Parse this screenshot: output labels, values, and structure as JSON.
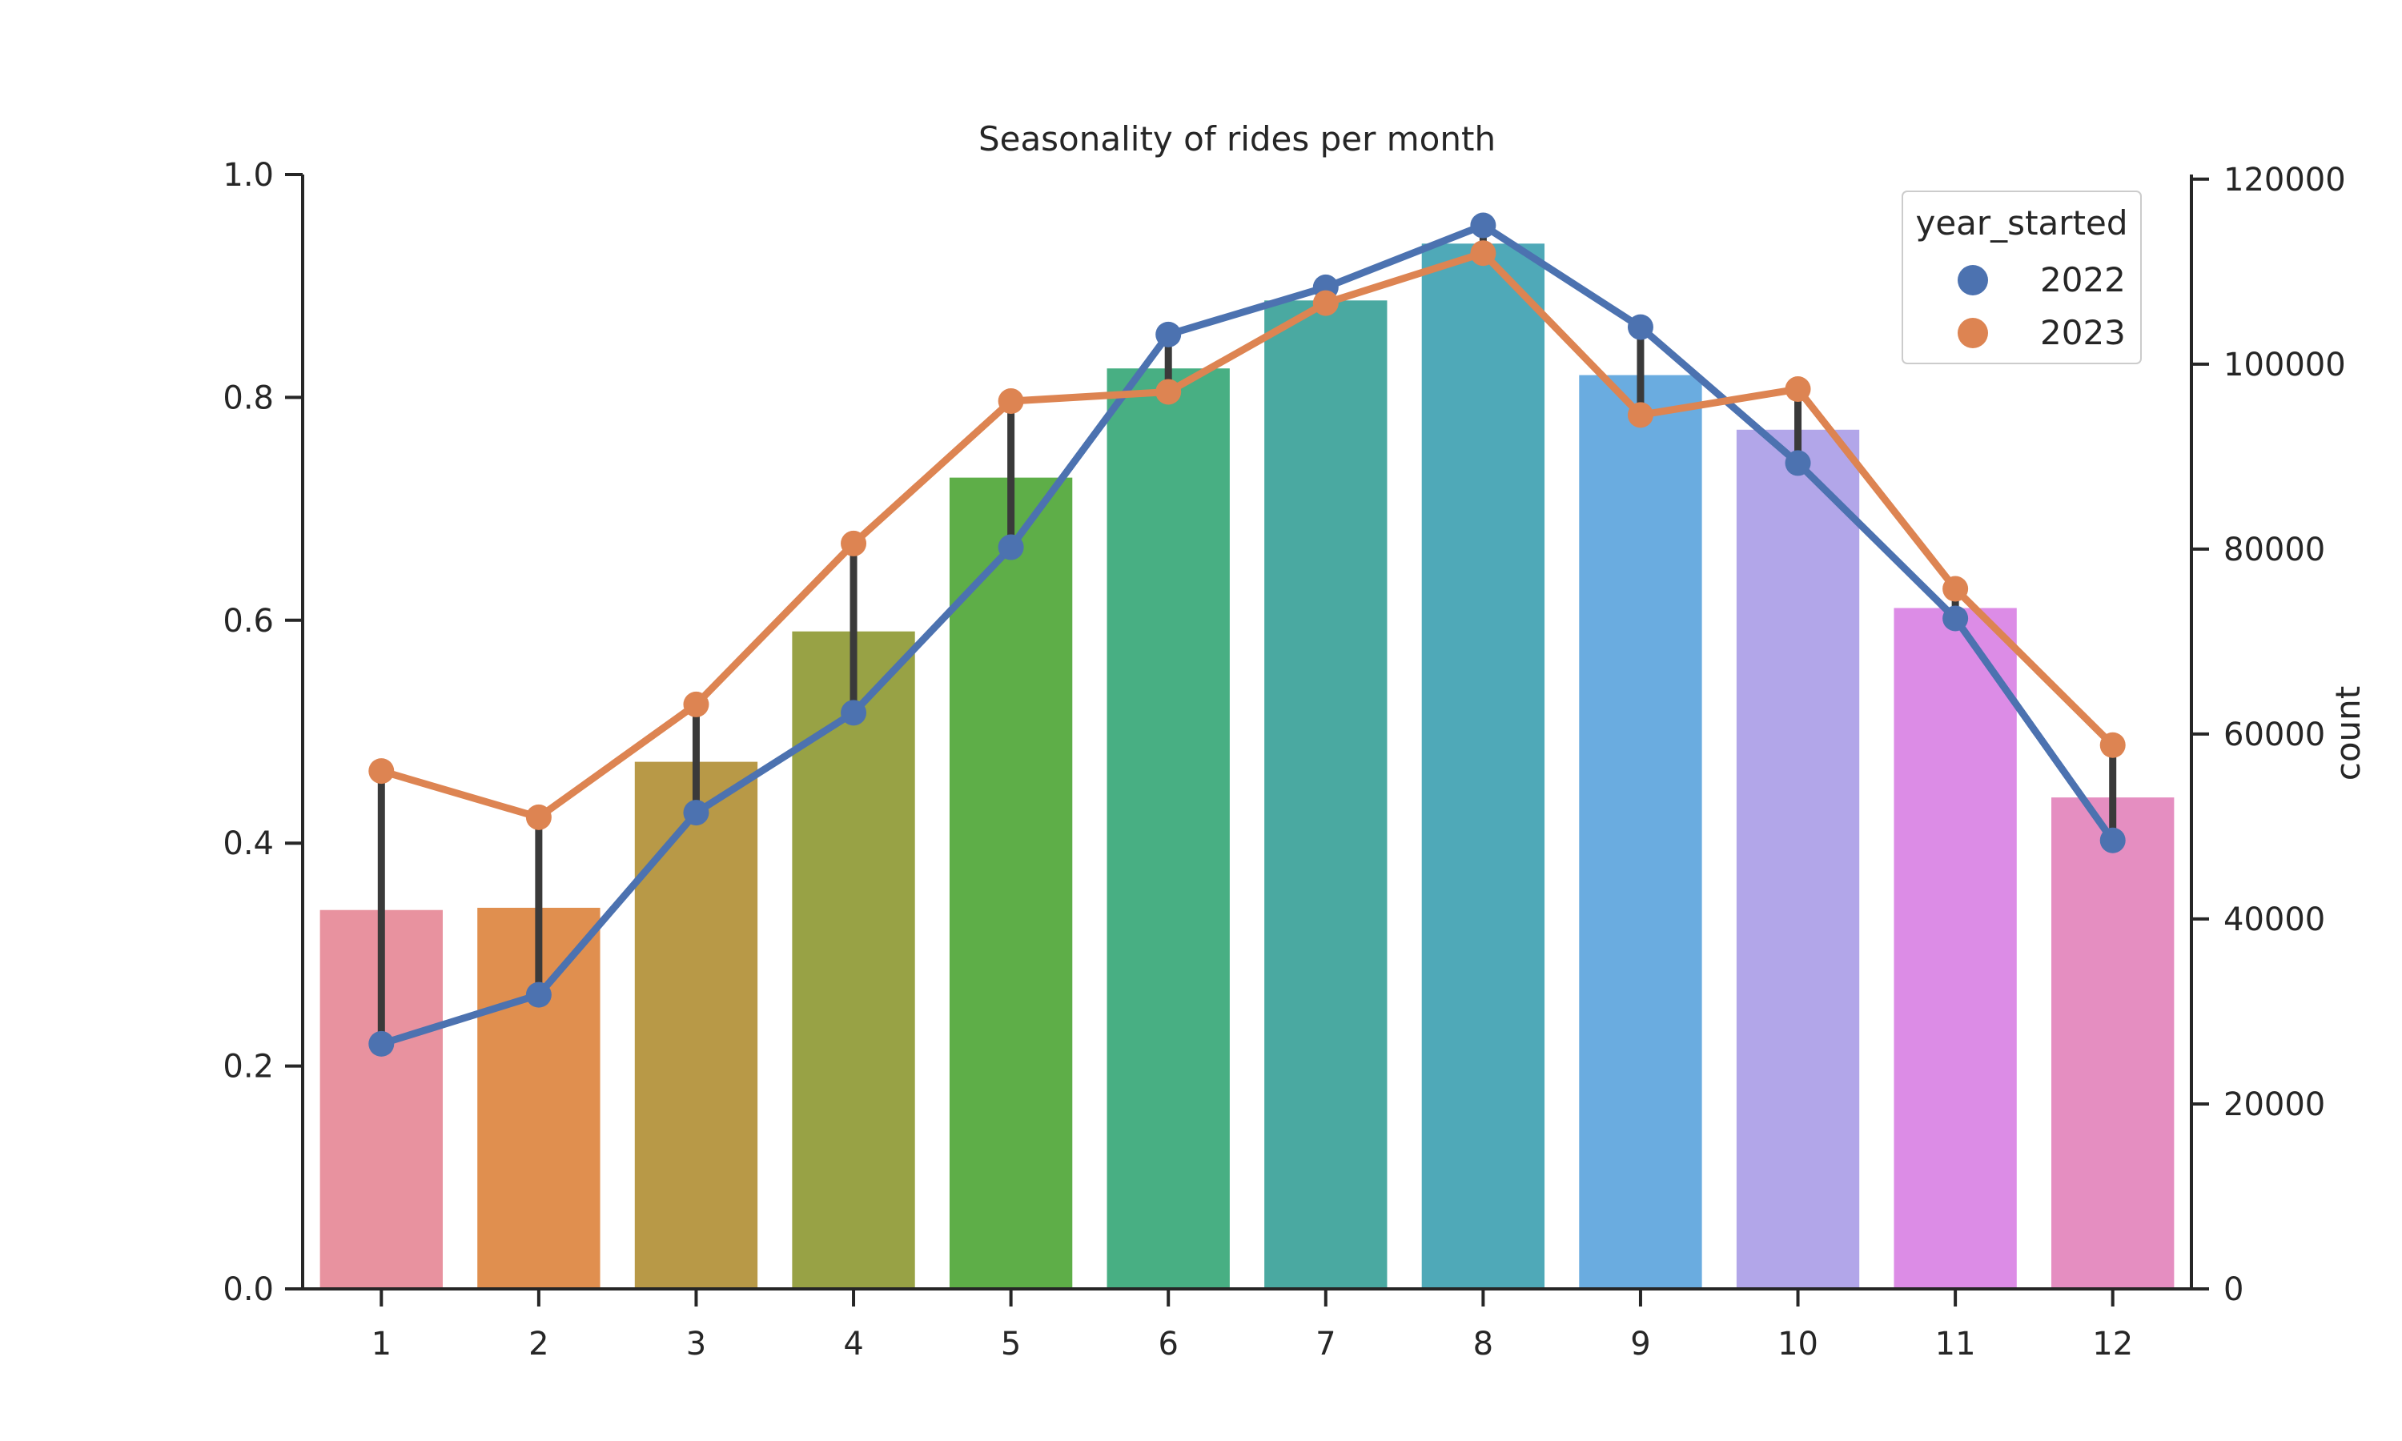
{
  "chart_data": {
    "type": "bar",
    "title": "Seasonality of rides per month",
    "xlabel": "",
    "categories": [
      "1",
      "2",
      "3",
      "4",
      "5",
      "6",
      "7",
      "8",
      "9",
      "10",
      "11",
      "12"
    ],
    "bar_values": [
      0.34,
      0.342,
      0.473,
      0.59,
      0.728,
      0.826,
      0.887,
      0.938,
      0.82,
      0.771,
      0.611,
      0.441
    ],
    "bar_colors": [
      "#e8929f",
      "#e08f4f",
      "#b89947",
      "#98a245",
      "#5eae48",
      "#48af83",
      "#4aa9a1",
      "#4fa9b8",
      "#6aace0",
      "#b2a6e9",
      "#dc8ce6",
      "#e58ec1"
    ],
    "left_axis": {
      "ylim": [
        0,
        1.0
      ],
      "ticks": [
        "0.0",
        "0.2",
        "0.4",
        "0.6",
        "0.8",
        "1.0"
      ]
    },
    "right_axis": {
      "ylabel": "count",
      "ylim": [
        0,
        120500
      ],
      "ticks": [
        "0",
        "20000",
        "40000",
        "60000",
        "80000",
        "100000",
        "120000"
      ]
    },
    "series": [
      {
        "name": "2022",
        "color": "#4c72b0",
        "values": [
          26500,
          31800,
          51500,
          62300,
          80200,
          103200,
          108300,
          115000,
          104000,
          89300,
          72500,
          48500
        ]
      },
      {
        "name": "2023",
        "color": "#dd8452",
        "values": [
          56000,
          51000,
          63200,
          80600,
          96000,
          97000,
          106600,
          112000,
          94500,
          97300,
          75700,
          58800
        ]
      }
    ],
    "legend": {
      "title": "year_started",
      "position": "top-right"
    },
    "grid": false
  }
}
